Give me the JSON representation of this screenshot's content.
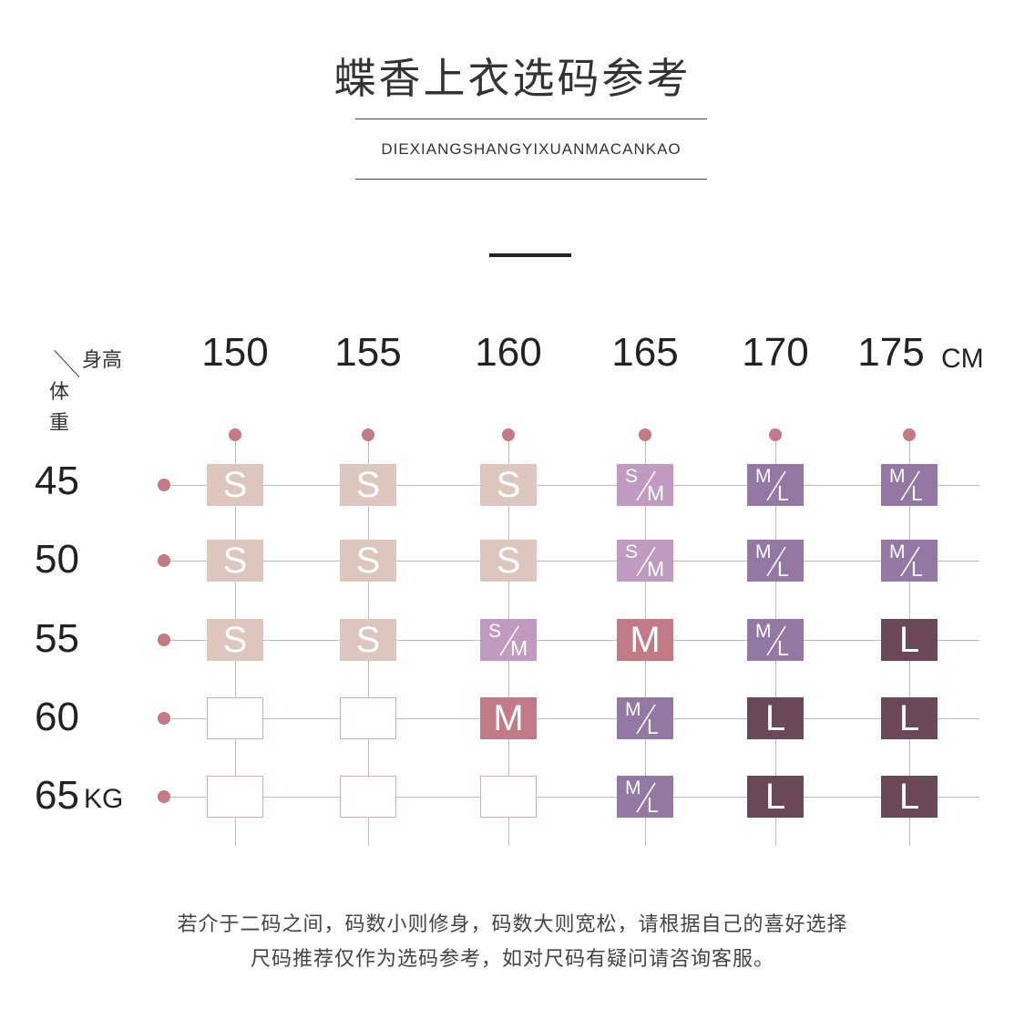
{
  "header": {
    "title": "蝶香上衣选码参考",
    "subtitle": "DIEXIANGSHANGYIXUANMACANKAO"
  },
  "corner": {
    "height_label": "身高",
    "weight_label_1": "体",
    "weight_label_2": "重"
  },
  "columns": {
    "values": [
      "150",
      "155",
      "160",
      "165",
      "170",
      "175"
    ],
    "unit": "CM"
  },
  "rows": {
    "values": [
      "45",
      "50",
      "55",
      "60",
      "65"
    ],
    "unit": "KG"
  },
  "colors": {
    "S": "#dcc6bd",
    "S/M": "#c09ac0",
    "M": "#c27a86",
    "M/L": "#9478a4",
    "L": "#6a4858",
    "empty_border": "#d8a8b4",
    "dot": "#c47a85",
    "grid": "#bdbdbd"
  },
  "grid": [
    [
      "S",
      "S",
      "S",
      "S/M",
      "M/L",
      "M/L"
    ],
    [
      "S",
      "S",
      "S",
      "S/M",
      "M/L",
      "M/L"
    ],
    [
      "S",
      "S",
      "S/M",
      "M",
      "M/L",
      "L"
    ],
    [
      "",
      "",
      "M",
      "M/L",
      "L",
      "L"
    ],
    [
      "",
      "",
      "",
      "M/L",
      "L",
      "L"
    ]
  ],
  "notes": {
    "line1": "若介于二码之间，码数小则修身，码数大则宽松，请根据自己的喜好选择",
    "line2": "尺码推荐仅作为选码参考，如对尺码有疑问请咨询客服。"
  }
}
